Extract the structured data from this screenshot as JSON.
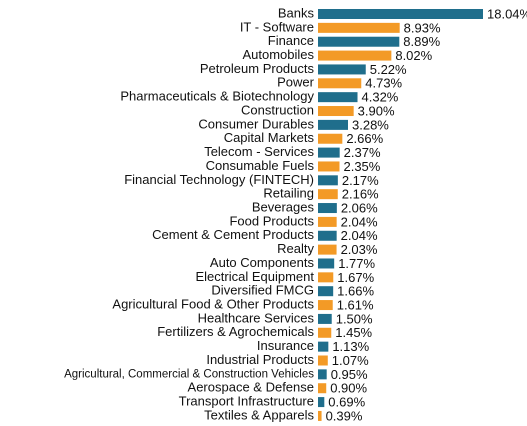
{
  "chart_data": {
    "type": "hbar",
    "categories": [
      "Banks",
      "IT - Software",
      "Finance",
      "Automobiles",
      "Petroleum Products",
      "Power",
      "Pharmaceuticals & Biotechnology",
      "Construction",
      "Consumer Durables",
      "Capital Markets",
      "Telecom - Services",
      "Consumable Fuels",
      "Financial Technology (FINTECH)",
      "Retailing",
      "Beverages",
      "Food Products",
      "Cement & Cement Products",
      "Realty",
      "Auto Components",
      "Electrical Equipment",
      "Diversified FMCG",
      "Agricultural Food & Other Products",
      "Healthcare Services",
      "Fertilizers & Agrochemicals",
      "Insurance",
      "Industrial Products",
      "Agricultural, Commercial & Construction Vehicles",
      "Aerospace & Defense",
      "Transport Infrastructure",
      "Textiles & Apparels"
    ],
    "values": [
      18.04,
      8.93,
      8.89,
      8.02,
      5.22,
      4.73,
      4.32,
      3.9,
      3.28,
      2.66,
      2.37,
      2.35,
      2.17,
      2.16,
      2.06,
      2.04,
      2.04,
      2.03,
      1.77,
      1.67,
      1.66,
      1.61,
      1.5,
      1.45,
      1.13,
      1.07,
      0.95,
      0.9,
      0.69,
      0.39
    ],
    "value_labels": [
      "18.04%",
      "8.93%",
      "8.89%",
      "8.02%",
      "5.22%",
      "4.73%",
      "4.32%",
      "3.90%",
      "3.28%",
      "2.66%",
      "2.37%",
      "2.35%",
      "2.17%",
      "2.16%",
      "2.06%",
      "2.04%",
      "2.04%",
      "2.03%",
      "1.77%",
      "1.67%",
      "1.66%",
      "1.61%",
      "1.50%",
      "1.45%",
      "1.13%",
      "1.07%",
      "0.95%",
      "0.90%",
      "0.69%",
      "0.39%"
    ],
    "colors": [
      "#1f6e8c",
      "#f39a26"
    ]
  }
}
